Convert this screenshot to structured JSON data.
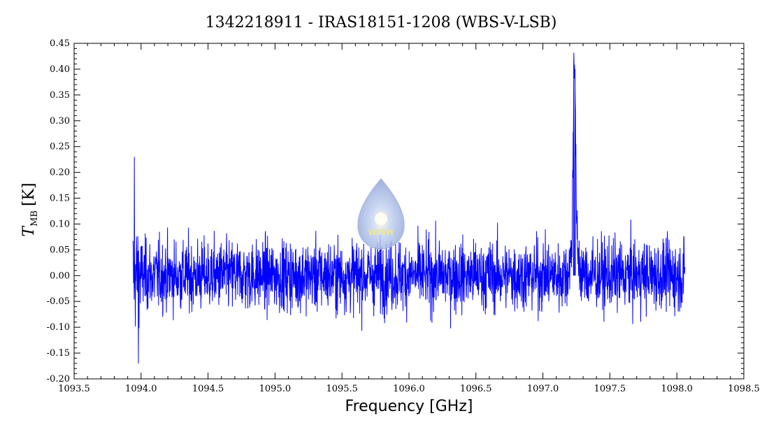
{
  "chart_data": {
    "type": "line",
    "title": "1342218911 - IRAS18151-1208 (WBS-V-LSB)",
    "xlabel": "Frequency [GHz]",
    "ylabel": {
      "symbol": "T",
      "subscript": "MB",
      "unit": "[K]"
    },
    "xlim": [
      1093.5,
      1098.5
    ],
    "ylim": [
      -0.2,
      0.45
    ],
    "xticks": [
      "1093.5",
      "1094.0",
      "1094.5",
      "1095.0",
      "1095.5",
      "1096.0",
      "1096.5",
      "1097.0",
      "1097.5",
      "1098.0",
      "1098.5"
    ],
    "yticks": [
      "-0.20",
      "-0.15",
      "-0.10",
      "-0.05",
      "0.00",
      "0.05",
      "0.10",
      "0.15",
      "0.20",
      "0.25",
      "0.30",
      "0.35",
      "0.40",
      "0.45"
    ],
    "grid": false,
    "series": [
      {
        "color": "#0000ff",
        "x_range": [
          1093.94,
          1098.06
        ],
        "baseline": 0.0,
        "noise_rms": 0.045,
        "features": [
          {
            "x": 1093.95,
            "y": 0.23
          },
          {
            "x": 1093.98,
            "y": -0.17
          },
          {
            "x": 1097.23,
            "y": 0.42
          },
          {
            "x": 1097.24,
            "y": 0.4
          }
        ]
      }
    ]
  },
  "logo": {
    "text": "WISH",
    "colors": {
      "drop": "#a9b9e3",
      "glow": "#fffbe0",
      "text": "#f2e36b"
    }
  }
}
